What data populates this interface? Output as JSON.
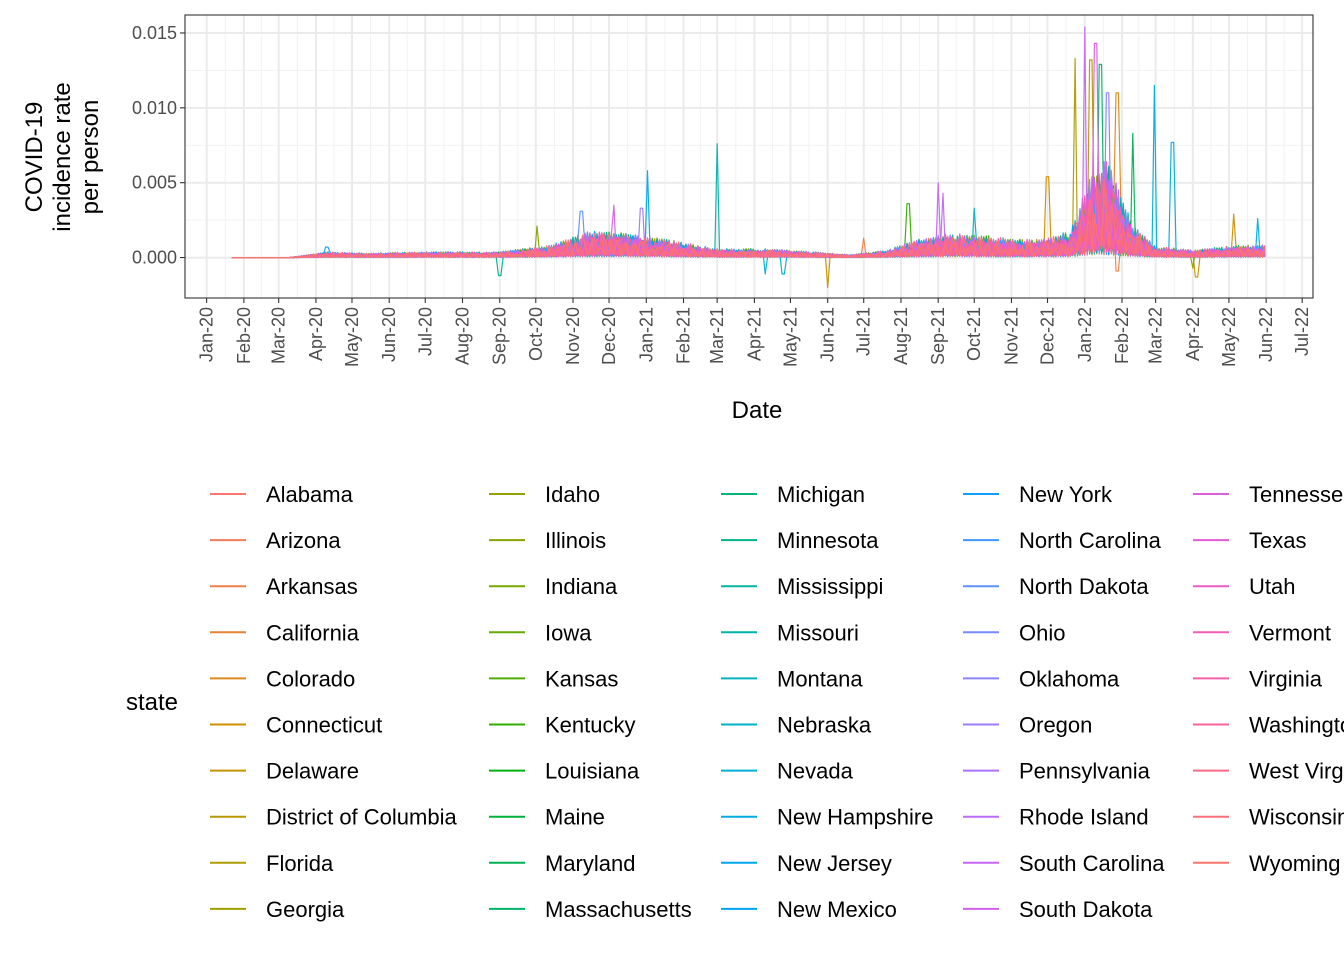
{
  "chart_data": {
    "type": "line",
    "title": "",
    "xlabel": "Date",
    "ylabel": "COVID-19 incidence rate per person",
    "ylabel_lines": [
      "COVID-19",
      "incidence rate",
      "per person"
    ],
    "x_range": [
      "2019-12-14",
      "2022-07-10"
    ],
    "ylim": [
      -0.0027,
      0.0162
    ],
    "x_ticks": [
      "Jan-20",
      "Feb-20",
      "Mar-20",
      "Apr-20",
      "May-20",
      "Jun-20",
      "Jul-20",
      "Aug-20",
      "Sep-20",
      "Oct-20",
      "Nov-20",
      "Dec-20",
      "Jan-21",
      "Feb-21",
      "Mar-21",
      "Apr-21",
      "May-21",
      "Jun-21",
      "Jul-21",
      "Aug-21",
      "Sep-21",
      "Oct-21",
      "Nov-21",
      "Dec-21",
      "Jan-22",
      "Feb-22",
      "Mar-22",
      "Apr-22",
      "May-22",
      "Jun-22",
      "Jul-22"
    ],
    "x_tick_dates": [
      "2020-01-01",
      "2020-02-01",
      "2020-03-01",
      "2020-04-01",
      "2020-05-01",
      "2020-06-01",
      "2020-07-01",
      "2020-08-01",
      "2020-09-01",
      "2020-10-01",
      "2020-11-01",
      "2020-12-01",
      "2021-01-01",
      "2021-02-01",
      "2021-03-01",
      "2021-04-01",
      "2021-05-01",
      "2021-06-01",
      "2021-07-01",
      "2021-08-01",
      "2021-09-01",
      "2021-10-01",
      "2021-11-01",
      "2021-12-01",
      "2022-01-01",
      "2022-02-01",
      "2022-03-01",
      "2022-04-01",
      "2022-05-01",
      "2022-06-01",
      "2022-07-01"
    ],
    "y_ticks": [
      "0.000",
      "0.005",
      "0.010",
      "0.015"
    ],
    "y_tick_values": [
      0,
      0.005,
      0.01,
      0.015
    ],
    "grid": true,
    "series_start": "2020-01-22",
    "series_end": "2022-06-01",
    "series_envelope": {
      "dates": [
        "2020-01-22",
        "2020-03-10",
        "2020-04-10",
        "2020-05-15",
        "2020-07-01",
        "2020-09-01",
        "2020-10-15",
        "2020-11-15",
        "2020-12-15",
        "2021-01-15",
        "2021-03-01",
        "2021-04-15",
        "2021-05-20",
        "2021-06-20",
        "2021-07-20",
        "2021-08-20",
        "2021-09-20",
        "2021-10-20",
        "2021-11-20",
        "2021-12-20",
        "2022-01-05",
        "2022-01-20",
        "2022-02-10",
        "2022-03-01",
        "2022-04-01",
        "2022-05-01",
        "2022-06-01"
      ],
      "typical_max": [
        0.0,
        0.0,
        0.0004,
        0.0003,
        0.0004,
        0.0004,
        0.0009,
        0.0018,
        0.0017,
        0.0013,
        0.0006,
        0.0006,
        0.0004,
        0.0002,
        0.0005,
        0.0014,
        0.0017,
        0.0014,
        0.0012,
        0.0018,
        0.0055,
        0.007,
        0.0022,
        0.0008,
        0.0005,
        0.0008,
        0.0009
      ]
    },
    "notable_spikes": [
      {
        "date": "2020-04-10",
        "value": 0.0007,
        "series": "New York"
      },
      {
        "date": "2020-09-01",
        "value": -0.0012,
        "series": "Minnesota"
      },
      {
        "date": "2020-10-02",
        "value": 0.0021,
        "series": "Illinois"
      },
      {
        "date": "2020-11-08",
        "value": 0.0031,
        "series": "North Dakota"
      },
      {
        "date": "2020-12-05",
        "value": 0.0035,
        "series": "South Dakota"
      },
      {
        "date": "2020-12-28",
        "value": 0.0033,
        "series": "Oregon"
      },
      {
        "date": "2021-01-02",
        "value": 0.0058,
        "series": "New Jersey"
      },
      {
        "date": "2021-03-01",
        "value": 0.0076,
        "series": "Missouri"
      },
      {
        "date": "2021-04-10",
        "value": -0.0011,
        "series": "Nevada"
      },
      {
        "date": "2021-04-25",
        "value": -0.0011,
        "series": "Nevada"
      },
      {
        "date": "2021-06-01",
        "value": -0.002,
        "series": "Delaware"
      },
      {
        "date": "2021-07-01",
        "value": 0.0013,
        "series": "Arkansas"
      },
      {
        "date": "2021-08-07",
        "value": 0.0036,
        "series": "Kentucky"
      },
      {
        "date": "2021-09-01",
        "value": 0.005,
        "series": "South Carolina"
      },
      {
        "date": "2021-09-05",
        "value": 0.0043,
        "series": "Rhode Island"
      },
      {
        "date": "2021-10-01",
        "value": 0.0033,
        "series": "Nebraska"
      },
      {
        "date": "2021-12-01",
        "value": 0.0054,
        "series": "Connecticut"
      },
      {
        "date": "2021-12-24",
        "value": 0.0133,
        "series": "Florida"
      },
      {
        "date": "2022-01-01",
        "value": 0.0154,
        "series": "South Carolina"
      },
      {
        "date": "2022-01-06",
        "value": 0.0132,
        "series": "District of Columbia"
      },
      {
        "date": "2022-01-10",
        "value": 0.0143,
        "series": "Tennessee"
      },
      {
        "date": "2022-01-14",
        "value": 0.0129,
        "series": "Massachusetts"
      },
      {
        "date": "2022-01-20",
        "value": 0.011,
        "series": "Oklahoma"
      },
      {
        "date": "2022-01-28",
        "value": 0.011,
        "series": "Colorado"
      },
      {
        "date": "2022-01-28",
        "value": -0.0009,
        "series": "Arkansas"
      },
      {
        "date": "2022-02-10",
        "value": 0.0083,
        "series": "Maryland"
      },
      {
        "date": "2022-02-28",
        "value": 0.0115,
        "series": "Nevada"
      },
      {
        "date": "2022-03-15",
        "value": 0.0077,
        "series": "Nevada"
      },
      {
        "date": "2022-04-01",
        "value": -0.0007,
        "series": "Illinois"
      },
      {
        "date": "2022-04-04",
        "value": -0.0013,
        "series": "Delaware"
      },
      {
        "date": "2022-05-05",
        "value": 0.0029,
        "series": "Connecticut"
      },
      {
        "date": "2022-05-25",
        "value": 0.0026,
        "series": "New Hampshire"
      }
    ],
    "legend": {
      "title": "state",
      "placement": "bottom",
      "columns": [
        [
          {
            "name": "Alabama",
            "color": "#F8766D"
          },
          {
            "name": "Arizona",
            "color": "#F57B5A"
          },
          {
            "name": "Arkansas",
            "color": "#EF7F47"
          },
          {
            "name": "California",
            "color": "#E78432"
          },
          {
            "name": "Colorado",
            "color": "#DC8A1A"
          },
          {
            "name": "Connecticut",
            "color": "#D18F00"
          },
          {
            "name": "Delaware",
            "color": "#C69300"
          },
          {
            "name": "District of Columbia",
            "color": "#BB9800"
          },
          {
            "name": "Florida",
            "color": "#AE9C00"
          },
          {
            "name": "Georgia",
            "color": "#A19F00"
          }
        ],
        [
          {
            "name": "Idaho",
            "color": "#94A200"
          },
          {
            "name": "Illinois",
            "color": "#86A500"
          },
          {
            "name": "Indiana",
            "color": "#76A800"
          },
          {
            "name": "Iowa",
            "color": "#65AA00"
          },
          {
            "name": "Kansas",
            "color": "#50AC00"
          },
          {
            "name": "Kentucky",
            "color": "#33AE00"
          },
          {
            "name": "Louisiana",
            "color": "#00B012"
          },
          {
            "name": "Maine",
            "color": "#00B13A"
          },
          {
            "name": "Maryland",
            "color": "#00B253"
          },
          {
            "name": "Massachusetts",
            "color": "#00B467"
          }
        ],
        [
          {
            "name": "Michigan",
            "color": "#00B47A"
          },
          {
            "name": "Minnesota",
            "color": "#00B58C"
          },
          {
            "name": "Mississippi",
            "color": "#00B59C"
          },
          {
            "name": "Missouri",
            "color": "#00B4AB"
          },
          {
            "name": "Montana",
            "color": "#00B3BA"
          },
          {
            "name": "Nebraska",
            "color": "#00B2C8"
          },
          {
            "name": "Nevada",
            "color": "#00AFD5"
          },
          {
            "name": "New Hampshire",
            "color": "#00ACE1"
          },
          {
            "name": "New Jersey",
            "color": "#00A8EB"
          },
          {
            "name": "New Mexico",
            "color": "#00A3F4"
          }
        ],
        [
          {
            "name": "New York",
            "color": "#129EFC"
          },
          {
            "name": "North Carolina",
            "color": "#3F98FF"
          },
          {
            "name": "North Dakota",
            "color": "#5D91FF"
          },
          {
            "name": "Ohio",
            "color": "#768AFF"
          },
          {
            "name": "Oklahoma",
            "color": "#8B83FF"
          },
          {
            "name": "Oregon",
            "color": "#9D7BFF"
          },
          {
            "name": "Pennsylvania",
            "color": "#AD73FF"
          },
          {
            "name": "Rhode Island",
            "color": "#BB6CFB"
          },
          {
            "name": "South Carolina",
            "color": "#C766F4"
          },
          {
            "name": "South Dakota",
            "color": "#D261EA"
          }
        ],
        [
          {
            "name": "Tennessee",
            "color": "#DC5DE0"
          },
          {
            "name": "Texas",
            "color": "#E55AD4"
          },
          {
            "name": "Utah",
            "color": "#EC5AC7"
          },
          {
            "name": "Vermont",
            "color": "#F25BB8"
          },
          {
            "name": "Virginia",
            "color": "#F75FA9"
          },
          {
            "name": "Washington",
            "color": "#FA6399"
          },
          {
            "name": "West Virginia",
            "color": "#FC6989"
          },
          {
            "name": "Wisconsin",
            "color": "#FB6F7A"
          },
          {
            "name": "Wyoming",
            "color": "#F8766D"
          }
        ]
      ]
    }
  }
}
